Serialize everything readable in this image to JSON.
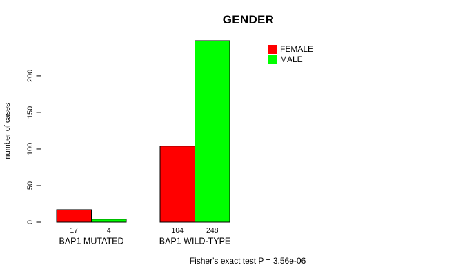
{
  "chart_data": {
    "type": "bar",
    "title": "GENDER",
    "xlabel": "",
    "ylabel": "number of cases",
    "categories": [
      "BAP1 MUTATED",
      "BAP1 WILD-TYPE"
    ],
    "series": [
      {
        "name": "FEMALE",
        "color": "#ff0000",
        "values": [
          17,
          104
        ]
      },
      {
        "name": "MALE",
        "color": "#00ff00",
        "values": [
          4,
          248
        ]
      }
    ],
    "yticks": [
      0,
      50,
      100,
      150,
      200
    ],
    "ylim": [
      0,
      250
    ],
    "grid": false,
    "bar_value_labels_shown": true,
    "legend": {
      "position": "top-right",
      "entries": [
        "FEMALE",
        "MALE"
      ]
    },
    "annotation": "Fisher's exact test P = 3.56e-06"
  },
  "colors": {
    "background": "#ffffff",
    "axis": "#000000",
    "text": "#000000"
  }
}
